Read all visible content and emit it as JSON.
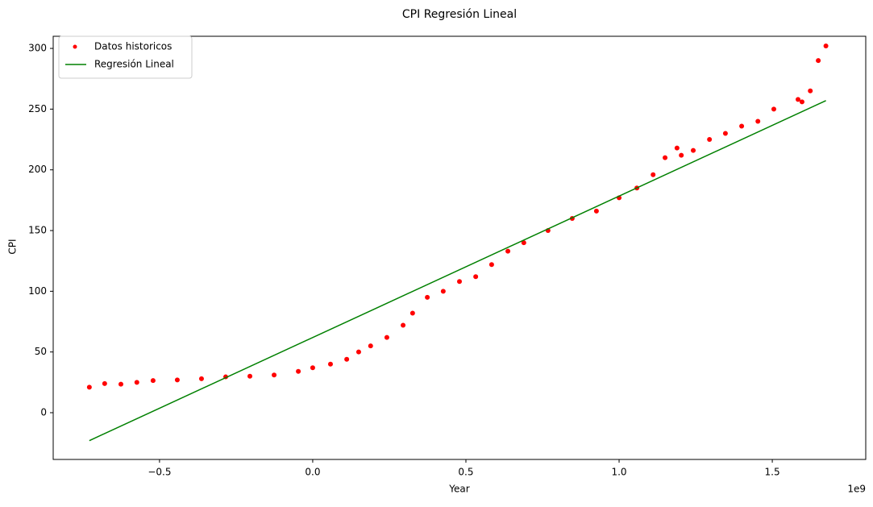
{
  "chart_data": {
    "type": "scatter",
    "title": "CPI Regresión Lineal",
    "x_label": "Year",
    "y_label": "CPI",
    "x_offset_label": "1e9",
    "xlim": [
      -847000000,
      1805000000
    ],
    "ylim": [
      -38.5,
      310
    ],
    "xticks": [
      {
        "value": -500000000,
        "label": "−0.5"
      },
      {
        "value": 0,
        "label": "0.0"
      },
      {
        "value": 500000000,
        "label": "0.5"
      },
      {
        "value": 1000000000,
        "label": "1.0"
      },
      {
        "value": 1500000000,
        "label": "1.5"
      }
    ],
    "yticks": [
      0,
      50,
      100,
      150,
      200,
      250,
      300
    ],
    "legend": "upper left",
    "grid": false,
    "series": [
      {
        "name": "Datos historicos",
        "color": "#ff0000",
        "type": "scatter",
        "x": [
          -729000000,
          -679000000,
          -626000000,
          -574000000,
          -521000000,
          -442000000,
          -363000000,
          -284000000,
          -205000000,
          -126000000,
          -47000000,
          0,
          58000000,
          111000000,
          150000000,
          189000000,
          242000000,
          295000000,
          326000000,
          374000000,
          426000000,
          479000000,
          532000000,
          584000000,
          637000000,
          689000000,
          768000000,
          847000000,
          926000000,
          1000000000,
          1058000000,
          1111000000,
          1150000000,
          1189000000,
          1203000000,
          1242000000,
          1295000000,
          1347000000,
          1400000000,
          1453000000,
          1505000000,
          1584000000,
          1597000000,
          1624000000,
          1650000000,
          1675000000
        ],
        "values": [
          21,
          24,
          23.5,
          25,
          26.5,
          27,
          28,
          29.5,
          30,
          31,
          34,
          37,
          40,
          44,
          50,
          55,
          62,
          72,
          82,
          95,
          100,
          108,
          112,
          122,
          133,
          140,
          150,
          160,
          166,
          177,
          185,
          196,
          210,
          218,
          212,
          216,
          225,
          230,
          236,
          240,
          250,
          258,
          256,
          265,
          290,
          302
        ]
      },
      {
        "name": "Regresión Lineal",
        "color": "#008000",
        "type": "line",
        "x": [
          -729000000,
          1675000000
        ],
        "values": [
          -23,
          257
        ]
      }
    ]
  }
}
